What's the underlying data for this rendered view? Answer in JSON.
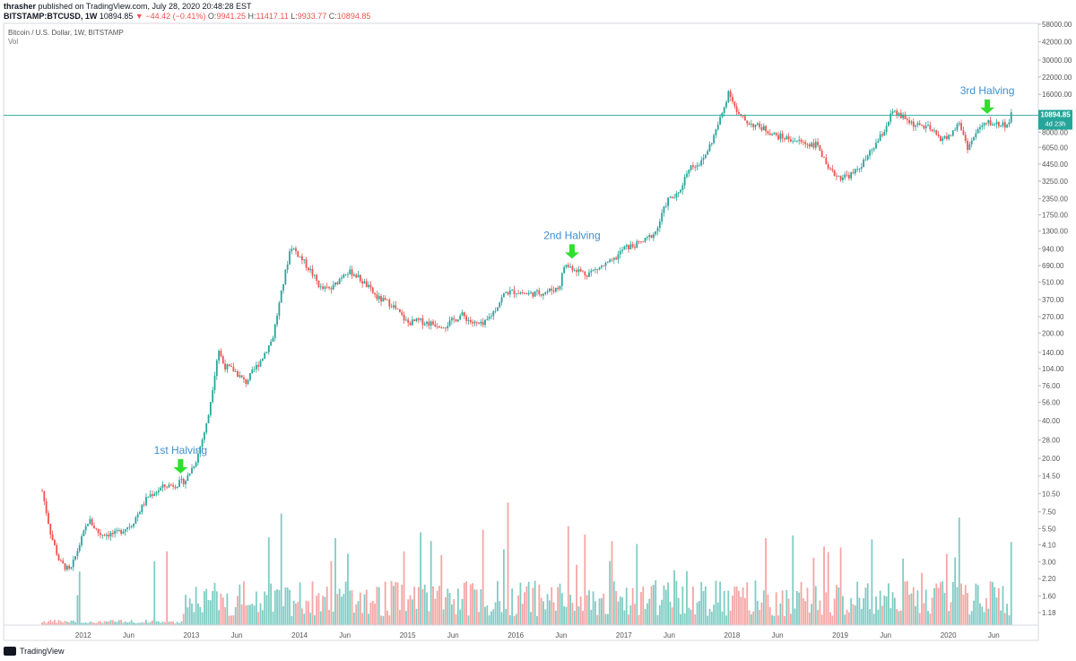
{
  "header": {
    "author": "thrasher",
    "published": "published on TradingView.com, July 28, 2020 20:48:28 EST",
    "symbol": "BITSTAMP:BTCUSD, 1W",
    "last": "10894.85",
    "change": "−44.42 (−0.41%)",
    "o_label": "O:",
    "o": "9941.25",
    "h_label": "H:",
    "h": "11417.11",
    "l_label": "L:",
    "l": "9933.77",
    "c_label": "C:",
    "c": "10894.85"
  },
  "legend": {
    "title": "Bitcoin / U.S. Dollar, 1W, BITSTAMP",
    "vol": "Vol"
  },
  "price_tag": {
    "value": "10894.85",
    "countdown": "4d 23h"
  },
  "footer": {
    "brand": "TradingView"
  },
  "colors": {
    "up": "#26a69a",
    "down": "#ef5350",
    "vol_up": "#7fcdc4",
    "vol_down": "#f4a6a4",
    "halving_arrow": "#2ee02e",
    "annotation": "#3f8fd0",
    "price_line": "#26a69a"
  },
  "chart_data": {
    "type": "candlestick",
    "scale": "log",
    "y_ticks": [
      "58000.00",
      "42000.00",
      "30000.00",
      "22000.00",
      "16000.00",
      "8000.00",
      "6050.00",
      "4450.00",
      "3250.00",
      "2350.00",
      "1750.00",
      "1300.00",
      "940.00",
      "690.00",
      "510.00",
      "370.00",
      "270.00",
      "200.00",
      "140.00",
      "104.00",
      "76.00",
      "56.00",
      "40.00",
      "28.00",
      "20.00",
      "14.50",
      "10.50",
      "7.50",
      "5.50",
      "4.10",
      "3.00",
      "2.20",
      "1.60",
      "1.18"
    ],
    "x_ticks": [
      "2012",
      "Jun",
      "2013",
      "Jun",
      "2014",
      "Jun",
      "2015",
      "Jun",
      "2016",
      "Jun",
      "2017",
      "Jun",
      "2018",
      "Jun",
      "2019",
      "Jun",
      "2020",
      "Jun"
    ],
    "x_tick_dates": [
      2012.0,
      2012.42,
      2013.0,
      2013.42,
      2014.0,
      2014.42,
      2015.0,
      2015.42,
      2016.0,
      2016.42,
      2017.0,
      2017.42,
      2018.0,
      2018.42,
      2019.0,
      2019.42,
      2020.0,
      2020.42
    ],
    "date_range": [
      2011.62,
      2020.6
    ],
    "price_path": [
      [
        2011.62,
        11
      ],
      [
        2011.7,
        5
      ],
      [
        2011.78,
        3
      ],
      [
        2011.88,
        2.5
      ],
      [
        2011.96,
        4
      ],
      [
        2012.05,
        6.5
      ],
      [
        2012.15,
        5
      ],
      [
        2012.3,
        5
      ],
      [
        2012.45,
        6
      ],
      [
        2012.6,
        10
      ],
      [
        2012.75,
        12
      ],
      [
        2012.87,
        12.5
      ],
      [
        2012.95,
        13.5
      ],
      [
        2013.05,
        20
      ],
      [
        2013.15,
        40
      ],
      [
        2013.25,
        150
      ],
      [
        2013.3,
        110
      ],
      [
        2013.4,
        100
      ],
      [
        2013.5,
        80
      ],
      [
        2013.65,
        125
      ],
      [
        2013.75,
        180
      ],
      [
        2013.85,
        500
      ],
      [
        2013.92,
        1000
      ],
      [
        2014.0,
        820
      ],
      [
        2014.1,
        630
      ],
      [
        2014.2,
        450
      ],
      [
        2014.3,
        450
      ],
      [
        2014.42,
        620
      ],
      [
        2014.5,
        600
      ],
      [
        2014.62,
        480
      ],
      [
        2014.72,
        380
      ],
      [
        2014.85,
        340
      ],
      [
        2015.0,
        240
      ],
      [
        2015.1,
        250
      ],
      [
        2015.2,
        240
      ],
      [
        2015.35,
        230
      ],
      [
        2015.5,
        280
      ],
      [
        2015.6,
        240
      ],
      [
        2015.7,
        230
      ],
      [
        2015.8,
        300
      ],
      [
        2015.9,
        420
      ],
      [
        2016.0,
        430
      ],
      [
        2016.1,
        410
      ],
      [
        2016.25,
        420
      ],
      [
        2016.4,
        460
      ],
      [
        2016.45,
        700
      ],
      [
        2016.55,
        650
      ],
      [
        2016.65,
        590
      ],
      [
        2016.8,
        680
      ],
      [
        2016.9,
        750
      ],
      [
        2017.0,
        950
      ],
      [
        2017.1,
        1000
      ],
      [
        2017.2,
        1100
      ],
      [
        2017.3,
        1300
      ],
      [
        2017.4,
        2300
      ],
      [
        2017.5,
        2500
      ],
      [
        2017.6,
        4200
      ],
      [
        2017.72,
        4600
      ],
      [
        2017.82,
        7000
      ],
      [
        2017.92,
        12000
      ],
      [
        2017.97,
        17500
      ],
      [
        2018.05,
        11000
      ],
      [
        2018.15,
        9500
      ],
      [
        2018.3,
        8500
      ],
      [
        2018.4,
        7500
      ],
      [
        2018.55,
        7000
      ],
      [
        2018.68,
        6500
      ],
      [
        2018.8,
        6300
      ],
      [
        2018.88,
        4000
      ],
      [
        2019.0,
        3500
      ],
      [
        2019.12,
        3700
      ],
      [
        2019.25,
        5000
      ],
      [
        2019.4,
        8000
      ],
      [
        2019.48,
        11500
      ],
      [
        2019.58,
        10500
      ],
      [
        2019.7,
        9000
      ],
      [
        2019.8,
        8800
      ],
      [
        2019.92,
        7200
      ],
      [
        2020.0,
        7200
      ],
      [
        2020.1,
        9500
      ],
      [
        2020.18,
        6000
      ],
      [
        2020.28,
        8500
      ],
      [
        2020.36,
        9500
      ],
      [
        2020.45,
        9300
      ],
      [
        2020.55,
        9200
      ],
      [
        2020.58,
        10894.85
      ]
    ],
    "annotations": [
      {
        "label": "1st Halving",
        "date": 2012.9
      },
      {
        "label": "2nd Halving",
        "date": 2016.52
      },
      {
        "label": "3rd Halving",
        "date": 2020.36
      }
    ],
    "last_price": 10894.85
  }
}
